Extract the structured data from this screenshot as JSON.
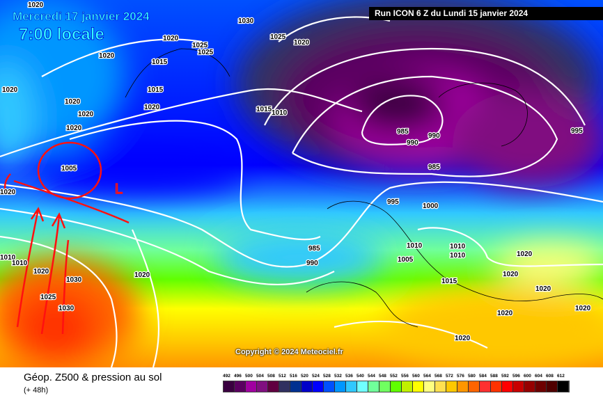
{
  "header": {
    "date": "Mercredi 17 janvier 2024",
    "hour": "7:00 locale",
    "run": "Run ICON 6 Z du Lundi 15 janvier 2024"
  },
  "copyright": "Copyright © 2024 Meteociel.fr",
  "footer": {
    "title": "Géop. Z500 & pression au sol",
    "subtitle": "(+ 48h)"
  },
  "legend": {
    "labels": [
      "492",
      "496",
      "500",
      "504",
      "508",
      "512",
      "516",
      "520",
      "524",
      "528",
      "532",
      "536",
      "540",
      "544",
      "548",
      "552",
      "556",
      "560",
      "564",
      "568",
      "572",
      "576",
      "580",
      "584",
      "588",
      "592",
      "596",
      "600",
      "604",
      "608",
      "612"
    ],
    "colors": [
      "#3a0040",
      "#5a0060",
      "#a000a0",
      "#801080",
      "#600040",
      "#303060",
      "#003090",
      "#0000c8",
      "#0000ff",
      "#0050ff",
      "#0096ff",
      "#30c8ff",
      "#70ffff",
      "#70ff9a",
      "#70ff60",
      "#60ff00",
      "#c0f000",
      "#ffff00",
      "#ffff80",
      "#ffe050",
      "#ffc800",
      "#ff9600",
      "#ff6400",
      "#ff3030",
      "#ff3200",
      "#ff0000",
      "#c80000",
      "#960000",
      "#6e0000",
      "#500000",
      "#000000"
    ]
  },
  "isobar_labels": [
    "1020",
    "1030",
    "1025",
    "1020",
    "1020",
    "1015",
    "1025",
    "1025",
    "1020",
    "1020",
    "1015",
    "1020",
    "1020",
    "1020",
    "1020",
    "1005",
    "1020",
    "1015",
    "1010",
    "985",
    "990",
    "985",
    "990",
    "995",
    "995",
    "1000",
    "985",
    "990",
    "1010",
    "1010",
    "1010",
    "1005",
    "1015",
    "1020",
    "1020",
    "1020",
    "1020",
    "1020",
    "1020",
    "1010",
    "1010",
    "1020",
    "1030",
    "1025",
    "1030",
    "1020"
  ],
  "annotations": {
    "low_marker": "L"
  }
}
